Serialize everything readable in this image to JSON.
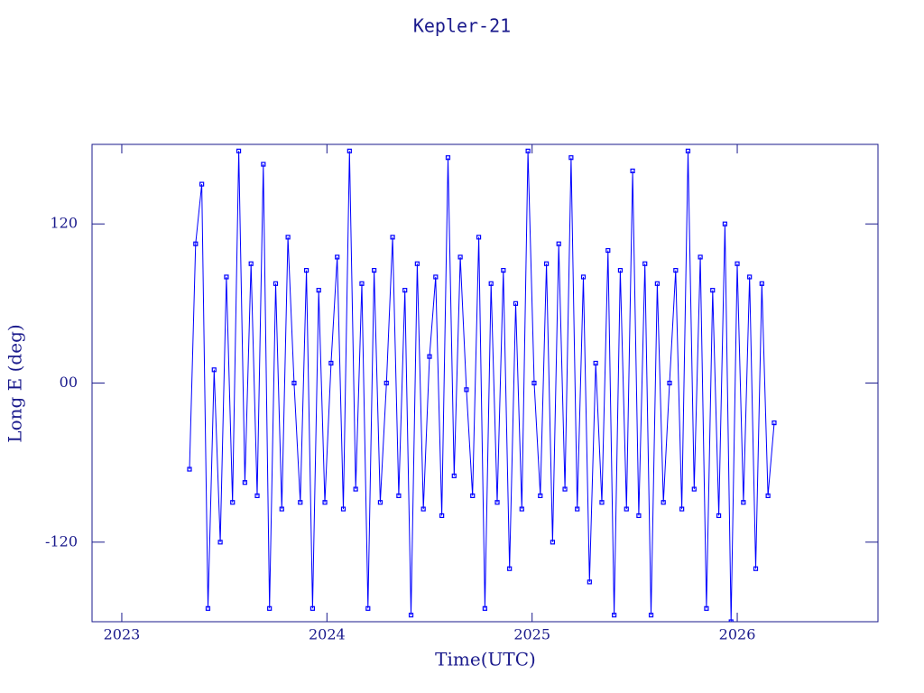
{
  "chart_data": {
    "type": "line",
    "title": "Kepler-21",
    "x_label": "Time(UTC)",
    "y_label": "Long E (deg)",
    "color": "#0000ff",
    "markers": true,
    "xlim": [
      2022.855,
      2026.686
    ],
    "xticks": [
      2023,
      2024,
      2025,
      2026
    ],
    "ylim": [
      -180,
      180
    ],
    "yticks": [
      -120,
      {
        "value": 0,
        "label": "00"
      },
      120
    ],
    "series": [
      {
        "name": "Kepler-21",
        "color": "#0000ff",
        "x": [
          2023.33,
          2023.36,
          2023.39,
          2023.42,
          2023.45,
          2023.48,
          2023.51,
          2023.54,
          2023.57,
          2023.6,
          2023.63,
          2023.66,
          2023.69,
          2023.72,
          2023.75,
          2023.78,
          2023.81,
          2023.84,
          2023.87,
          2023.9,
          2023.93,
          2023.96,
          2023.99,
          2024.02,
          2024.05,
          2024.08,
          2024.11,
          2024.14,
          2024.17,
          2024.2,
          2024.23,
          2024.26,
          2024.29,
          2024.32,
          2024.35,
          2024.38,
          2024.41,
          2024.44,
          2024.47,
          2024.5,
          2024.53,
          2024.56,
          2024.59,
          2024.62,
          2024.65,
          2024.68,
          2024.71,
          2024.74,
          2024.77,
          2024.8,
          2024.83,
          2024.86,
          2024.89,
          2024.92,
          2024.95,
          2024.98,
          2025.01,
          2025.04,
          2025.07,
          2025.1,
          2025.13,
          2025.16,
          2025.19,
          2025.22,
          2025.25,
          2025.28,
          2025.31,
          2025.34,
          2025.37,
          2025.4,
          2025.43,
          2025.46,
          2025.49,
          2025.52,
          2025.55,
          2025.58,
          2025.61,
          2025.64,
          2025.67,
          2025.7,
          2025.73,
          2025.76,
          2025.79,
          2025.82,
          2025.85,
          2025.88,
          2025.91,
          2025.94,
          2025.97,
          2026.0,
          2026.03,
          2026.06,
          2026.09,
          2026.12,
          2026.15,
          2026.18
        ],
        "values": [
          -65,
          105,
          150,
          -170,
          10,
          -120,
          80,
          -90,
          175,
          -75,
          90,
          -85,
          165,
          -170,
          75,
          -95,
          110,
          0,
          -90,
          85,
          -170,
          70,
          -90,
          15,
          95,
          -95,
          175,
          -80,
          75,
          -170,
          85,
          -90,
          0,
          110,
          -85,
          70,
          -175,
          90,
          -95,
          20,
          80,
          -100,
          170,
          -70,
          95,
          -5,
          -85,
          110,
          -170,
          75,
          -90,
          85,
          -140,
          60,
          -95,
          175,
          0,
          -85,
          90,
          -120,
          105,
          -80,
          170,
          -95,
          80,
          -150,
          15,
          -90,
          100,
          -175,
          85,
          -95,
          160,
          -100,
          90,
          -175,
          75,
          -90,
          0,
          85,
          -95,
          175,
          -80,
          95,
          -170,
          70,
          -100,
          120,
          -180,
          90,
          -90,
          80,
          -140,
          75,
          -85,
          -30
        ]
      }
    ]
  }
}
